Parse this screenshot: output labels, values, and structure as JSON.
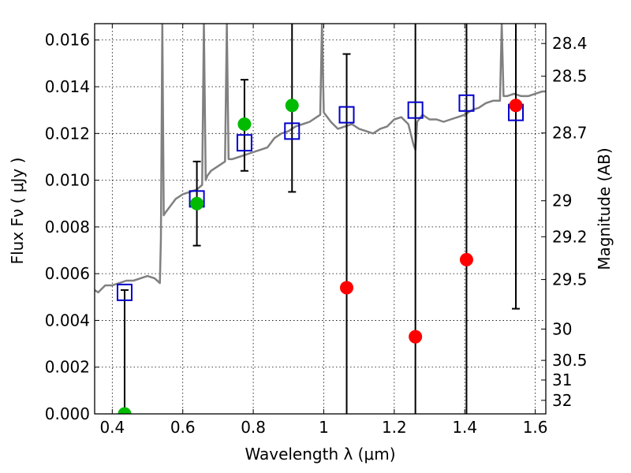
{
  "chart_data": {
    "type": "scatter",
    "xlabel": "Wavelength  λ (μm)",
    "ylabel": "Flux  Fν  ( μJy )",
    "ylabel_right": "Magnitude (AB)",
    "xlim": [
      0.35,
      1.63
    ],
    "ylim": [
      0.0,
      0.0167
    ],
    "x_ticks": [
      0.4,
      0.6,
      0.8,
      1.0,
      1.2,
      1.4,
      1.6
    ],
    "x_tick_labels": [
      "0.4",
      "0.6",
      "0.8",
      "1",
      "1.2",
      "1.4",
      "1.6"
    ],
    "y_ticks": [
      0.0,
      0.002,
      0.004,
      0.006,
      0.008,
      0.01,
      0.012,
      0.014,
      0.016
    ],
    "y_tick_labels": [
      "0.000",
      "0.002",
      "0.004",
      "0.006",
      "0.008",
      "0.010",
      "0.012",
      "0.014",
      "0.016"
    ],
    "right_ticks": [
      {
        "label": "28.4",
        "flux": 0.01585
      },
      {
        "label": "28.5",
        "flux": 0.01445
      },
      {
        "label": "28.7",
        "flux": 0.01202
      },
      {
        "label": "29",
        "flux": 0.00912
      },
      {
        "label": "29.2",
        "flux": 0.00758
      },
      {
        "label": "29.5",
        "flux": 0.00575
      },
      {
        "label": "30",
        "flux": 0.00363
      },
      {
        "label": "30.5",
        "flux": 0.00229
      },
      {
        "label": "31",
        "flux": 0.00145
      },
      {
        "label": "32",
        "flux": 0.00058
      }
    ],
    "grid": true,
    "series": [
      {
        "kind": "line",
        "color": "#808080",
        "x": [
          0.35,
          0.36,
          0.38,
          0.4,
          0.42,
          0.44,
          0.46,
          0.48,
          0.5,
          0.52,
          0.535,
          0.538,
          0.542,
          0.546,
          0.55,
          0.56,
          0.58,
          0.6,
          0.62,
          0.64,
          0.655,
          0.66,
          0.665,
          0.67,
          0.68,
          0.7,
          0.72,
          0.725,
          0.73,
          0.74,
          0.76,
          0.78,
          0.8,
          0.82,
          0.84,
          0.86,
          0.88,
          0.9,
          0.92,
          0.94,
          0.96,
          0.98,
          0.99,
          0.995,
          1.0,
          1.02,
          1.04,
          1.06,
          1.08,
          1.1,
          1.12,
          1.14,
          1.16,
          1.18,
          1.2,
          1.22,
          1.24,
          1.255,
          1.26,
          1.265,
          1.28,
          1.3,
          1.32,
          1.34,
          1.36,
          1.38,
          1.4,
          1.42,
          1.44,
          1.46,
          1.48,
          1.5,
          1.505,
          1.51,
          1.52,
          1.54,
          1.56,
          1.58,
          1.6,
          1.62,
          1.63
        ],
        "y": [
          0.0053,
          0.0052,
          0.0055,
          0.0055,
          0.0056,
          0.0057,
          0.0057,
          0.0058,
          0.0059,
          0.0058,
          0.0056,
          0.0075,
          0.0167,
          0.0085,
          0.0086,
          0.0088,
          0.0092,
          0.0094,
          0.0095,
          0.0096,
          0.0098,
          0.0167,
          0.01,
          0.0102,
          0.0104,
          0.0106,
          0.0108,
          0.0167,
          0.0109,
          0.0109,
          0.011,
          0.0111,
          0.0112,
          0.0113,
          0.0114,
          0.0118,
          0.012,
          0.0121,
          0.0123,
          0.0124,
          0.0125,
          0.0127,
          0.0128,
          0.0167,
          0.0129,
          0.0125,
          0.0122,
          0.0123,
          0.0124,
          0.0122,
          0.0121,
          0.012,
          0.0122,
          0.0123,
          0.0126,
          0.0127,
          0.0124,
          0.0115,
          0.0113,
          0.0125,
          0.0128,
          0.0126,
          0.0126,
          0.0125,
          0.0126,
          0.0127,
          0.0128,
          0.013,
          0.0131,
          0.0133,
          0.0134,
          0.0134,
          0.0167,
          0.0136,
          0.0136,
          0.0137,
          0.0136,
          0.0136,
          0.0137,
          0.0138,
          0.0138
        ]
      },
      {
        "kind": "marker",
        "marker": "open-square",
        "color": "#0000cc",
        "x": [
          0.435,
          0.64,
          0.775,
          0.91,
          1.065,
          1.26,
          1.405,
          1.545
        ],
        "y": [
          0.0052,
          0.0092,
          0.0116,
          0.0121,
          0.0128,
          0.013,
          0.0133,
          0.0129
        ]
      },
      {
        "kind": "marker",
        "marker": "circle",
        "color": "#00bb00",
        "x": [
          0.435,
          0.64,
          0.775,
          0.91
        ],
        "y": [
          0.0,
          0.009,
          0.0124,
          0.0132
        ]
      },
      {
        "kind": "marker",
        "marker": "circle",
        "color": "#ff0000",
        "x": [
          1.065,
          1.26,
          1.405,
          1.545
        ],
        "y": [
          0.0054,
          0.0033,
          0.0066,
          0.0132
        ]
      },
      {
        "kind": "errorbar",
        "color": "#000000",
        "x": [
          0.435,
          0.64,
          0.775,
          0.91,
          1.065,
          1.26,
          1.405,
          1.545
        ],
        "y_low": [
          0.0,
          0.0072,
          0.0104,
          0.0095,
          0.0,
          0.0,
          0.0,
          0.0045
        ],
        "y_high": [
          0.0053,
          0.0108,
          0.0143,
          0.0167,
          0.0154,
          0.0167,
          0.0167,
          0.0167
        ]
      }
    ]
  }
}
